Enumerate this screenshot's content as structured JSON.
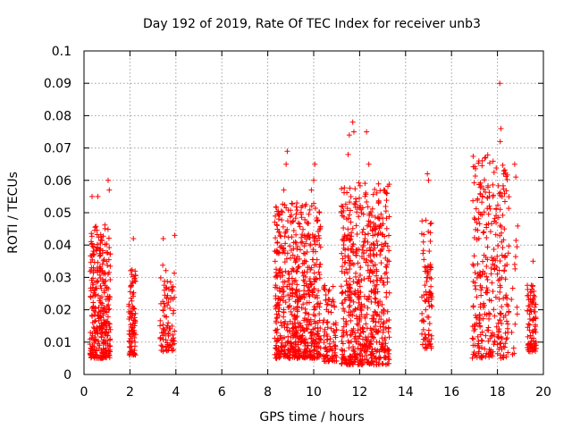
{
  "chart_data": {
    "type": "scatter",
    "title": "Day 192 of 2019, Rate Of TEC Index for receiver unb3",
    "xlabel": "GPS time / hours",
    "ylabel": "ROTI / TECUs",
    "xlim": [
      0,
      20
    ],
    "ylim": [
      0,
      0.1
    ],
    "x_ticks": [
      0,
      2,
      4,
      6,
      8,
      10,
      12,
      14,
      16,
      18,
      20
    ],
    "y_ticks": [
      0,
      0.01,
      0.02,
      0.03,
      0.04,
      0.05,
      0.06,
      0.07,
      0.08,
      0.09,
      0.1
    ],
    "x_tick_labels": [
      "0",
      "2",
      "4",
      "6",
      "8",
      "10",
      "12",
      "14",
      "16",
      "18",
      "20"
    ],
    "y_tick_labels": [
      "0",
      "0.01",
      "0.02",
      "0.03",
      "0.04",
      "0.05",
      "0.06",
      "0.07",
      "0.08",
      "0.09",
      "0.1"
    ],
    "grid": true,
    "marker": "+",
    "color": "#ff0000",
    "clusters": [
      {
        "x_range": [
          0.25,
          1.15
        ],
        "y_range": [
          0.005,
          0.06
        ],
        "density": "high"
      },
      {
        "x_range": [
          1.95,
          2.25
        ],
        "y_range": [
          0.006,
          0.042
        ],
        "density": "medium"
      },
      {
        "x_range": [
          3.3,
          3.95
        ],
        "y_range": [
          0.007,
          0.043
        ],
        "density": "medium"
      },
      {
        "x_range": [
          8.3,
          10.3
        ],
        "y_range": [
          0.005,
          0.069
        ],
        "density": "very high"
      },
      {
        "x_range": [
          10.4,
          11.0
        ],
        "y_range": [
          0.004,
          0.036
        ],
        "density": "medium"
      },
      {
        "x_range": [
          11.2,
          13.3
        ],
        "y_range": [
          0.003,
          0.078
        ],
        "density": "very high"
      },
      {
        "x_range": [
          14.7,
          15.15
        ],
        "y_range": [
          0.008,
          0.062
        ],
        "density": "medium"
      },
      {
        "x_range": [
          16.9,
          18.5
        ],
        "y_range": [
          0.005,
          0.09
        ],
        "density": "high"
      },
      {
        "x_range": [
          18.6,
          18.9
        ],
        "y_range": [
          0.006,
          0.065
        ],
        "density": "low"
      },
      {
        "x_range": [
          19.3,
          19.7
        ],
        "y_range": [
          0.007,
          0.035
        ],
        "density": "medium"
      }
    ],
    "notable_points": [
      {
        "x": 0.35,
        "y": 0.055
      },
      {
        "x": 0.6,
        "y": 0.055
      },
      {
        "x": 1.05,
        "y": 0.06
      },
      {
        "x": 1.1,
        "y": 0.057
      },
      {
        "x": 2.15,
        "y": 0.042
      },
      {
        "x": 3.45,
        "y": 0.042
      },
      {
        "x": 3.95,
        "y": 0.043
      },
      {
        "x": 8.85,
        "y": 0.069
      },
      {
        "x": 8.8,
        "y": 0.065
      },
      {
        "x": 8.7,
        "y": 0.057
      },
      {
        "x": 10.05,
        "y": 0.065
      },
      {
        "x": 10.0,
        "y": 0.06
      },
      {
        "x": 9.9,
        "y": 0.057
      },
      {
        "x": 11.7,
        "y": 0.078
      },
      {
        "x": 11.75,
        "y": 0.075
      },
      {
        "x": 11.55,
        "y": 0.074
      },
      {
        "x": 12.3,
        "y": 0.075
      },
      {
        "x": 12.4,
        "y": 0.065
      },
      {
        "x": 11.5,
        "y": 0.068
      },
      {
        "x": 13.05,
        "y": 0.057
      },
      {
        "x": 14.95,
        "y": 0.062
      },
      {
        "x": 15.0,
        "y": 0.06
      },
      {
        "x": 17.65,
        "y": 0.055
      },
      {
        "x": 18.1,
        "y": 0.09
      },
      {
        "x": 18.15,
        "y": 0.076
      },
      {
        "x": 18.12,
        "y": 0.072
      },
      {
        "x": 18.75,
        "y": 0.065
      },
      {
        "x": 18.8,
        "y": 0.061
      },
      {
        "x": 18.2,
        "y": 0.055
      },
      {
        "x": 18.75,
        "y": 0.034
      },
      {
        "x": 19.55,
        "y": 0.035
      },
      {
        "x": 18.3,
        "y": 0.045
      }
    ]
  }
}
